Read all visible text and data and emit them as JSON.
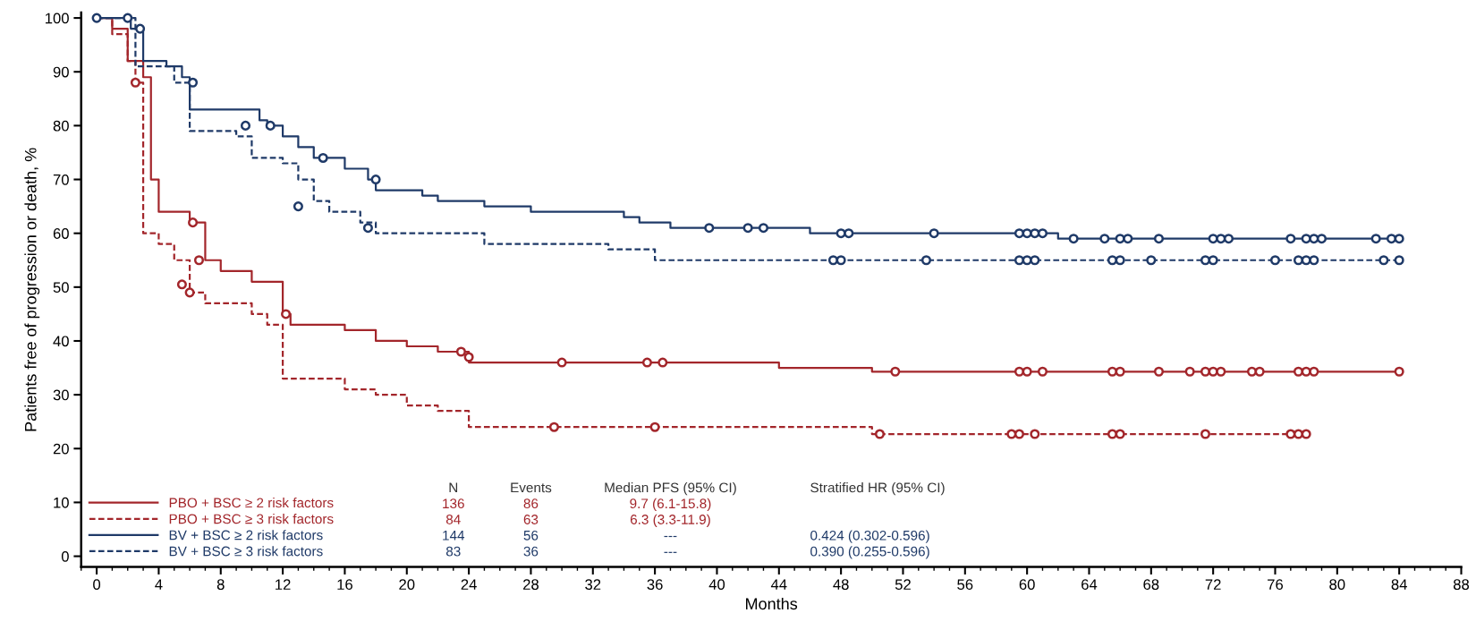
{
  "chart_data": {
    "type": "step",
    "xlabel": "Months",
    "ylabel": "Patients free of progression or death, %",
    "xlim": [
      -1,
      88
    ],
    "ylim": [
      -2,
      101
    ],
    "xticks": [
      0,
      4,
      8,
      12,
      16,
      20,
      24,
      28,
      32,
      36,
      40,
      44,
      48,
      52,
      56,
      60,
      64,
      68,
      72,
      76,
      80,
      84,
      88
    ],
    "yticks": [
      0,
      10,
      20,
      30,
      40,
      50,
      60,
      70,
      80,
      90,
      100
    ],
    "grid": false,
    "legend": "bottom left",
    "marker": "none",
    "series": [
      {
        "name": "PBO + BSC ≥ 2 risk factors",
        "color": "#a3262b",
        "line_style": "solid",
        "x": [
          0,
          1,
          2,
          3,
          3.5,
          4,
          6,
          7,
          8,
          10,
          12,
          12.5,
          16,
          18,
          20,
          22,
          24,
          44,
          50,
          84
        ],
        "values": [
          100,
          98,
          92,
          89,
          70,
          64,
          62,
          55,
          53,
          51,
          45,
          43,
          42,
          40,
          39,
          38,
          36,
          35,
          34.3,
          34.3
        ]
      },
      {
        "name": "PBO + BSC ≥ 3 risk factors",
        "color": "#a3262b",
        "line_style": "dashed",
        "x": [
          0,
          1,
          2,
          2.5,
          3,
          4,
          5,
          6,
          7,
          10,
          11,
          12,
          16,
          18,
          20,
          22,
          24,
          49,
          50,
          78
        ],
        "values": [
          100,
          97,
          92,
          88,
          60,
          58,
          55,
          49,
          47,
          45,
          43,
          33,
          31,
          30,
          28,
          27,
          24,
          24,
          22.7,
          22.7
        ]
      },
      {
        "name": "BV + BSC ≥ 2 risk factors",
        "color": "#1f3a68",
        "line_style": "solid",
        "x": [
          0,
          2.2,
          3,
          4.5,
          5.5,
          6,
          10.5,
          11,
          12,
          13,
          14,
          16,
          17.5,
          18,
          21,
          22,
          25,
          28,
          34,
          35,
          37,
          46,
          62,
          84
        ],
        "values": [
          100,
          98,
          92,
          91,
          89,
          83,
          81,
          80,
          78,
          76,
          74,
          72,
          70,
          68,
          67,
          66,
          65,
          64,
          63,
          62,
          61,
          60,
          59,
          59
        ]
      },
      {
        "name": "BV + BSC ≥ 3 risk factors",
        "color": "#1f3a68",
        "line_style": "dashed",
        "x": [
          0,
          2.5,
          5,
          6,
          9,
          10,
          12,
          13,
          14,
          15,
          17,
          18,
          25,
          33,
          36,
          84
        ],
        "values": [
          100,
          91,
          88,
          79,
          78,
          74,
          73,
          70,
          66,
          64,
          62,
          60,
          58,
          57,
          55,
          55
        ]
      },
      {
        "type": "scatter",
        "marker": "circle",
        "color": "#a3262b",
        "x": [
          6.2,
          6.6,
          12.2,
          23.5,
          24,
          30,
          35.5,
          36.5,
          51.5,
          59.5,
          60,
          61,
          65.5,
          66,
          68.5,
          70.5,
          71.5,
          72,
          72.5,
          74.5,
          75,
          77.5,
          78,
          78.5,
          84
        ],
        "values": [
          62,
          55,
          45,
          38,
          37,
          36,
          36,
          36,
          34.3,
          34.3,
          34.3,
          34.3,
          34.3,
          34.3,
          34.3,
          34.3,
          34.3,
          34.3,
          34.3,
          34.3,
          34.3,
          34.3,
          34.3,
          34.3,
          34.3
        ]
      },
      {
        "type": "scatter",
        "marker": "circle",
        "color": "#a3262b",
        "x": [
          2.5,
          5.5,
          6,
          29.5,
          36,
          50.5,
          59,
          59.5,
          60.5,
          65.5,
          66,
          71.5,
          77,
          77.5,
          78
        ],
        "values": [
          88,
          50.5,
          49,
          24,
          24,
          22.7,
          22.7,
          22.7,
          22.7,
          22.7,
          22.7,
          22.7,
          22.7,
          22.7,
          22.7
        ]
      },
      {
        "type": "scatter",
        "marker": "circle",
        "color": "#1f3a68",
        "x": [
          0,
          2,
          2.8,
          6.2,
          9.6,
          11.2,
          14.6,
          18,
          39.5,
          42,
          43,
          48,
          48.5,
          54,
          59.5,
          60,
          60.5,
          61,
          63,
          65,
          66,
          66.5,
          68.5,
          72,
          72.5,
          73,
          77,
          78,
          78.5,
          79,
          82.5,
          83.5,
          84
        ],
        "values": [
          100,
          100,
          98,
          88,
          80,
          80,
          74,
          70,
          61,
          61,
          61,
          60,
          60,
          60,
          60,
          60,
          60,
          60,
          59,
          59,
          59,
          59,
          59,
          59,
          59,
          59,
          59,
          59,
          59,
          59,
          59,
          59,
          59
        ]
      },
      {
        "type": "scatter",
        "marker": "circle",
        "color": "#1f3a68",
        "x": [
          13,
          17.5,
          47.5,
          48,
          53.5,
          59.5,
          60,
          60.5,
          65.5,
          66,
          68,
          71.5,
          72,
          76,
          77.5,
          78,
          78.5,
          83,
          84
        ],
        "values": [
          65,
          61,
          55,
          55,
          55,
          55,
          55,
          55,
          55,
          55,
          55,
          55,
          55,
          55,
          55,
          55,
          55,
          55,
          55
        ]
      }
    ],
    "annotations": [
      "N",
      "Events",
      "Median PFS (95% CI)",
      "Stratified HR (95% CI)",
      "136",
      "86",
      "9.7 (6.1-15.8)",
      "84",
      "63",
      "6.3 (3.3-11.9)",
      "144",
      "56",
      "---",
      "0.424 (0.302-0.596)",
      "83",
      "36",
      "---",
      "0.390 (0.255-0.596)"
    ]
  }
}
